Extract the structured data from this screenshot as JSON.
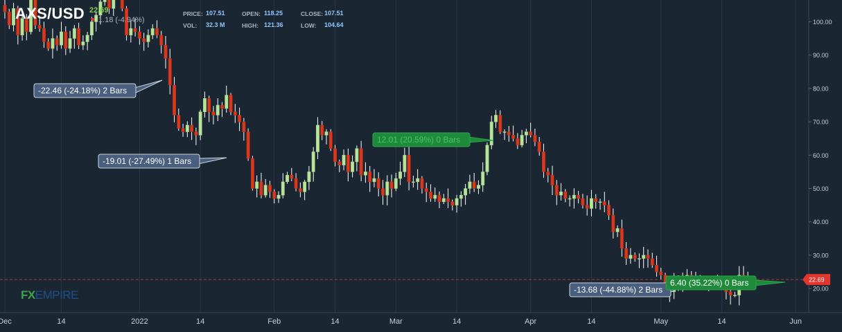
{
  "header": {
    "symbol": "AXS/USD",
    "last_price": "22.69",
    "change": "1.18 (-4.94%)",
    "change_arrow_color": "#e0362c",
    "stats": [
      {
        "label": "PRICE:",
        "value": "107.51"
      },
      {
        "label": "VOL:",
        "value": "32.3 M"
      },
      {
        "label": "OPEN:",
        "value": "118.25"
      },
      {
        "label": "HIGH:",
        "value": "121.36"
      },
      {
        "label": "CLOSE:",
        "value": "107.51"
      },
      {
        "label": "LOW:",
        "value": "104.64"
      }
    ]
  },
  "watermark": {
    "fx": "FX",
    "empire": "EMPIRE"
  },
  "colors": {
    "background": "#1b2633",
    "grid": "#2a3644",
    "bull": "#b7e39a",
    "bear": "#d9381e",
    "wick": "#ffffff",
    "price_line": "#e0362c",
    "annotation_bg": "#4a5f7e",
    "annotation_green_bg": "#1f8a3a"
  },
  "chart_data": {
    "type": "candlestick",
    "title": "AXS/USD",
    "xlabel": "",
    "ylabel": "",
    "ylim": [
      14,
      105
    ],
    "y_ticks": [
      20,
      30,
      40,
      50,
      60,
      70,
      80,
      90,
      100
    ],
    "y_tick_labels": [
      "20.00",
      "30.00",
      "40.00",
      "50.00",
      "60.00",
      "70.00",
      "80.00",
      "90.00",
      "100.00"
    ],
    "x_tick_labels": [
      "Dec",
      "14",
      "2022",
      "14",
      "Feb",
      "14",
      "Mar",
      "14",
      "Apr",
      "14",
      "May",
      "14",
      "Jun"
    ],
    "x_tick_index": [
      0,
      13,
      31,
      45,
      62,
      76,
      90,
      104,
      121,
      135,
      151,
      165,
      182
    ],
    "grid": "vertical",
    "last_price_label": "22.69",
    "last_price": 22.69,
    "closes": [
      103,
      99,
      104,
      96,
      101,
      97,
      108,
      99,
      98,
      94,
      92,
      95,
      93,
      97,
      92,
      95,
      98,
      93,
      94,
      96,
      100,
      102,
      106,
      108,
      104,
      109,
      108,
      104,
      96,
      98,
      97,
      95,
      94,
      96,
      98,
      96,
      93,
      89,
      81,
      72,
      68,
      67,
      69,
      67,
      66,
      73,
      77,
      73,
      72,
      75,
      74,
      78,
      73,
      72,
      70,
      67,
      59,
      50,
      52,
      48,
      51,
      49,
      47,
      48,
      52,
      54,
      53,
      50,
      49,
      52,
      55,
      61,
      69,
      66,
      67,
      62,
      58,
      57,
      60,
      55,
      58,
      62,
      54,
      55,
      52,
      53,
      50,
      48,
      52,
      50,
      53,
      55,
      60,
      52,
      52,
      53,
      50,
      49,
      47,
      48,
      46,
      47,
      46,
      45,
      47,
      48,
      50,
      52,
      50,
      51,
      55,
      63,
      70,
      72,
      67,
      67,
      66,
      65,
      63,
      66,
      67,
      66,
      64,
      61,
      55,
      54,
      51,
      48,
      49,
      47,
      47,
      48,
      47,
      45,
      44,
      47,
      46,
      46,
      45,
      42,
      37,
      38,
      32,
      29,
      30,
      29,
      29,
      30,
      29,
      27,
      25,
      24,
      20,
      19,
      22,
      20,
      23,
      24,
      23,
      22,
      22,
      21,
      22,
      22,
      22,
      21,
      19,
      18,
      18,
      24,
      23,
      22.69
    ],
    "annotations": [
      {
        "text": "-22.46 (-24.18%) 2 Bars",
        "kind": "down"
      },
      {
        "text": "-19.01 (-27.49%) 1 Bars",
        "kind": "down"
      },
      {
        "text": "12.01 (20.59%) 0 Bars",
        "kind": "up"
      },
      {
        "text": "-13.68 (-44.88%) 2 Bars",
        "kind": "down"
      },
      {
        "text": "6.40 (35.22%) 0 Bars",
        "kind": "up"
      }
    ]
  }
}
